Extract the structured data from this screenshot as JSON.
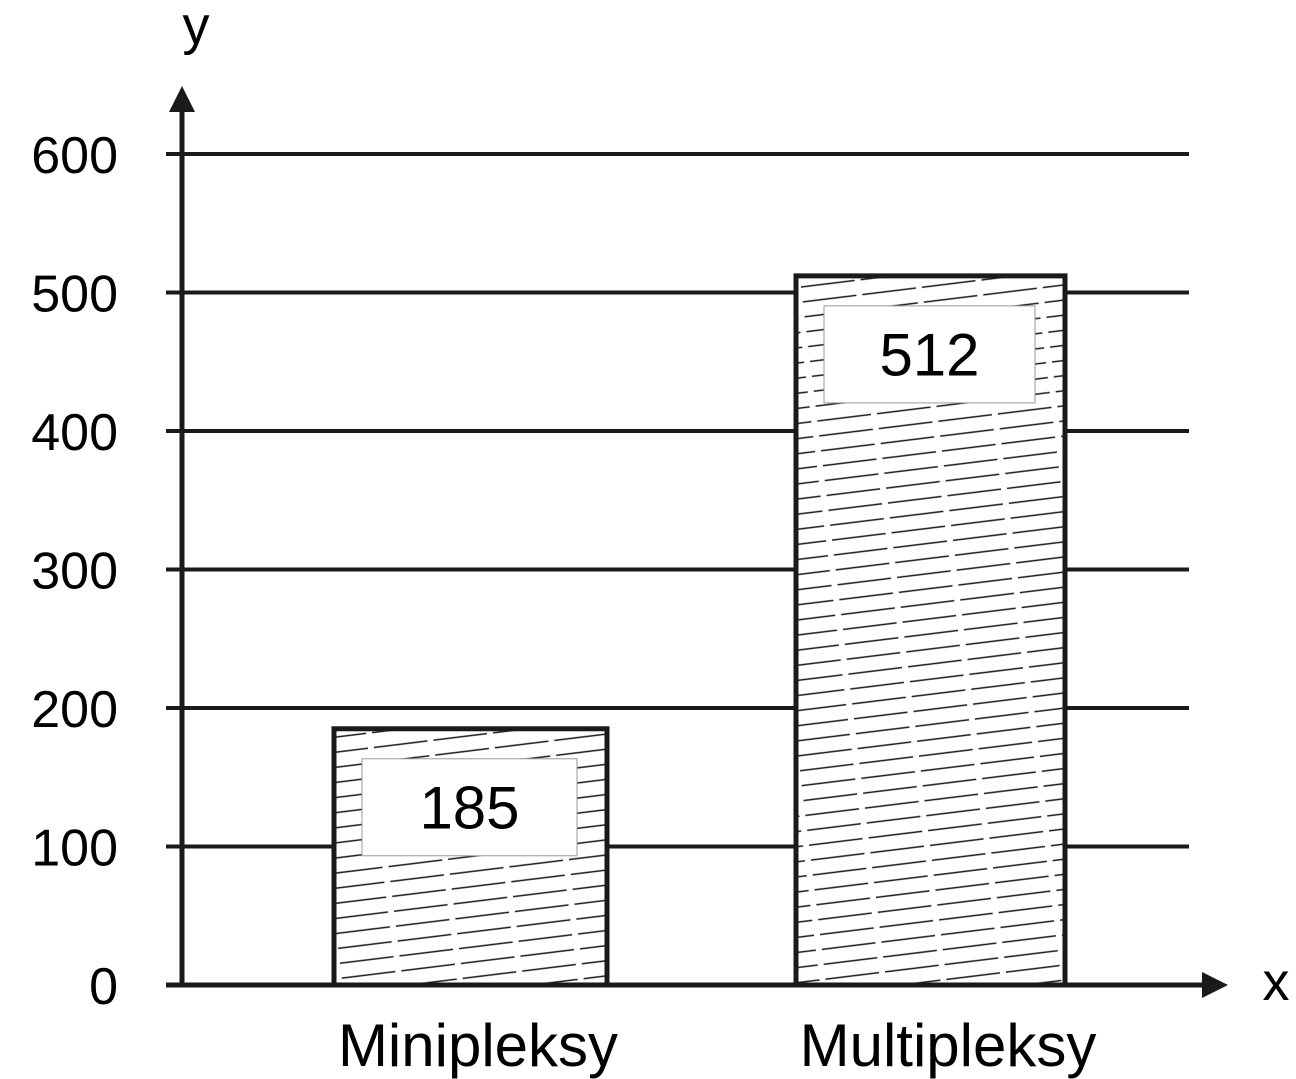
{
  "chart_data": {
    "type": "bar",
    "categories": [
      "Minipleksy",
      "Multipleksy"
    ],
    "values": [
      185,
      512
    ],
    "data_labels": [
      "185",
      "512"
    ],
    "title": "",
    "xlabel": "x",
    "ylabel": "y",
    "ylim": [
      0,
      600
    ],
    "yticks": [
      0,
      100,
      200,
      300,
      400,
      500,
      600
    ],
    "ytick_labels": [
      "0",
      "100",
      "200",
      "300",
      "400",
      "500",
      "600"
    ],
    "grid": true,
    "bar_fill": "diagonal-hatch",
    "colors": {
      "line": "#1a1a1a",
      "bar_fill": "#ffffff",
      "label_box": "#ffffff"
    }
  }
}
